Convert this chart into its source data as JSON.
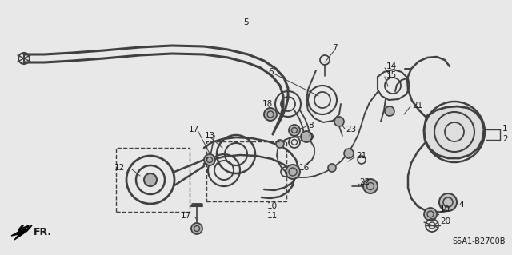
{
  "bg_color": "#e8e8e8",
  "diagram_bg": "#ffffff",
  "line_color": "#404040",
  "text_color": "#1a1a1a",
  "diagram_ref": "S5A1-B2700B",
  "fr_label": "FR.",
  "part_font_size": 7.5,
  "ref_font_size": 7
}
